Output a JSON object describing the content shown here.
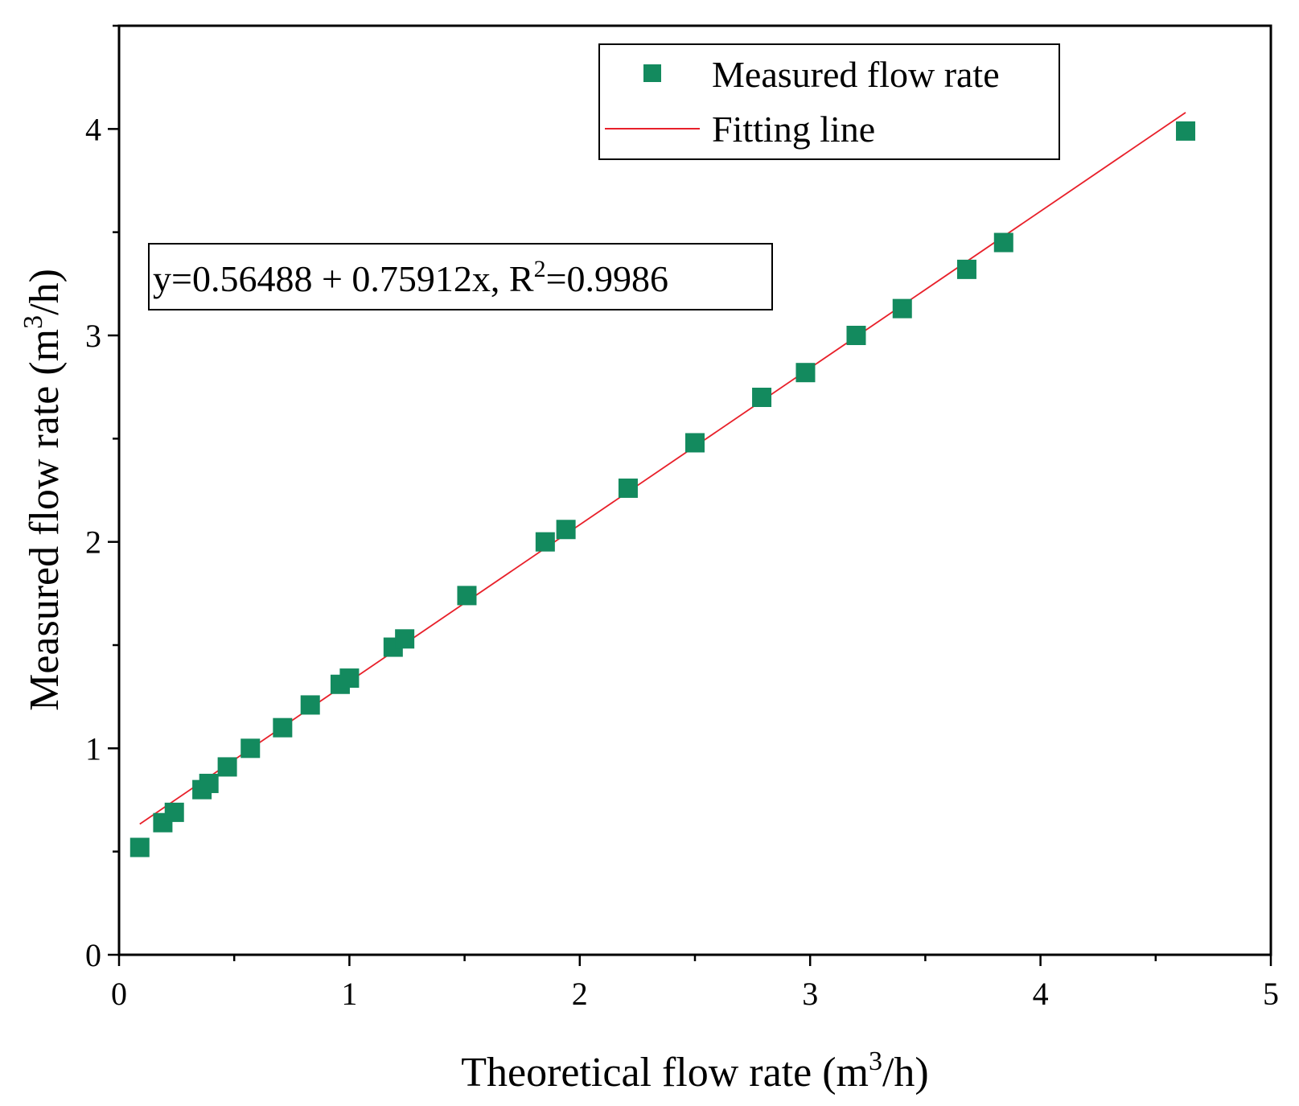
{
  "chart_data": {
    "type": "scatter",
    "title": "",
    "xlabel": {
      "main": "Theoretical flow rate (m",
      "sup": "3",
      "tail": "/h)"
    },
    "ylabel": {
      "main": "Measured flow rate (m",
      "sup": "3",
      "tail": "/h)"
    },
    "xlim": [
      0,
      5
    ],
    "ylim": [
      0,
      4.5
    ],
    "x_ticks": [
      0,
      1,
      2,
      3,
      4,
      5
    ],
    "y_ticks": [
      0,
      1,
      2,
      3,
      4
    ],
    "x_tick_labels": [
      "0",
      "1",
      "2",
      "3",
      "4",
      "5"
    ],
    "y_tick_labels": [
      "0",
      "1",
      "2",
      "3",
      "4"
    ],
    "series": [
      {
        "name": "Measured flow rate",
        "kind": "scatter",
        "marker": "square",
        "color": "#138a5e",
        "x": [
          0.09,
          0.19,
          0.24,
          0.36,
          0.39,
          0.47,
          0.57,
          0.71,
          0.83,
          0.96,
          1.0,
          1.19,
          1.24,
          1.51,
          1.85,
          1.94,
          2.21,
          2.5,
          2.79,
          2.98,
          3.2,
          3.4,
          3.68,
          3.84,
          4.63
        ],
        "y": [
          0.52,
          0.64,
          0.69,
          0.8,
          0.83,
          0.91,
          1.0,
          1.1,
          1.21,
          1.31,
          1.34,
          1.49,
          1.53,
          1.74,
          2.0,
          2.06,
          2.26,
          2.48,
          2.7,
          2.82,
          3.0,
          3.13,
          3.32,
          3.45,
          3.99
        ]
      },
      {
        "name": "Fitting line",
        "kind": "line",
        "color": "#e8202a",
        "intercept": 0.56488,
        "slope": 0.75912,
        "x_range": [
          0.09,
          4.63
        ]
      }
    ],
    "legend": {
      "position": "top-right",
      "entries": [
        "Measured flow rate",
        "Fitting line"
      ]
    },
    "annotation": {
      "main": "y=0.56488 + 0.75912x, R",
      "sup": "2",
      "tail": "=0.9986"
    },
    "grid": false
  }
}
